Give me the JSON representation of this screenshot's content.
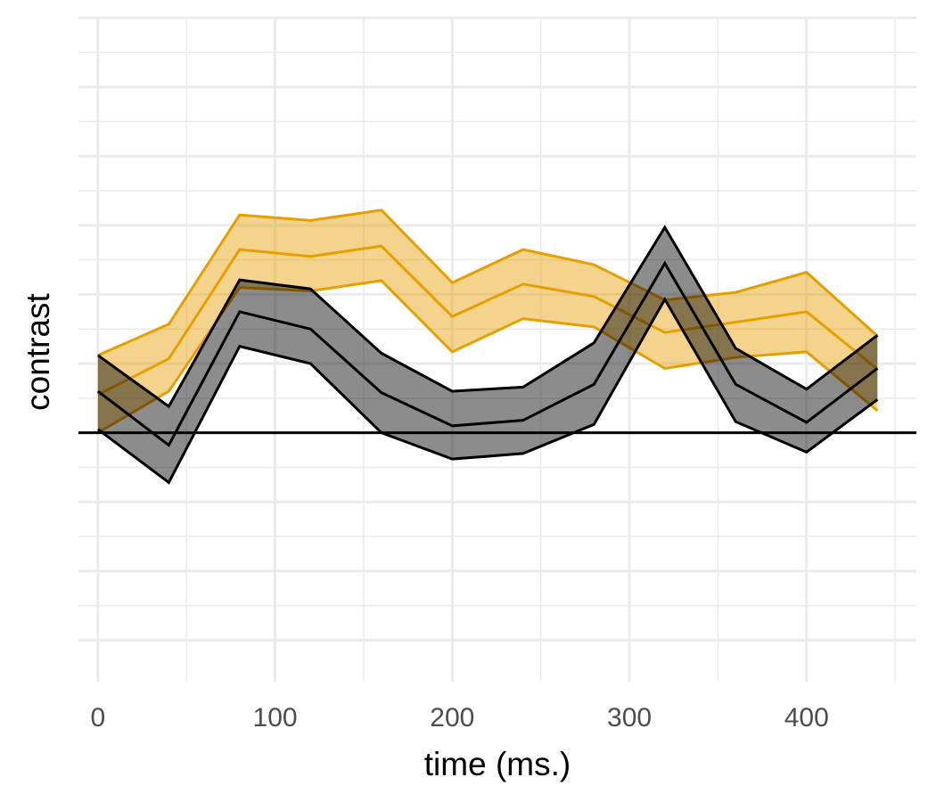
{
  "chart_data": {
    "type": "line",
    "title": "",
    "xlabel": "time (ms.)",
    "ylabel": "contrast",
    "xlim": [
      -11,
      462
    ],
    "ylim": [
      -3.6,
      6.0
    ],
    "x_ticks": [
      0,
      100,
      200,
      300,
      400
    ],
    "y_ticks": [],
    "grid": true,
    "reference_line": {
      "y": 0
    },
    "x": [
      0,
      40,
      80,
      120,
      160,
      200,
      240,
      280,
      320,
      360,
      400,
      440
    ],
    "series": [
      {
        "color": "#E69F00",
        "values": [
          0.55,
          1.07,
          2.65,
          2.55,
          2.7,
          1.68,
          2.15,
          1.97,
          1.45,
          1.6,
          1.75,
          0.92
        ],
        "lower": [
          0.0,
          0.6,
          2.1,
          2.05,
          2.2,
          1.17,
          1.65,
          1.53,
          0.93,
          1.09,
          1.17,
          0.32
        ],
        "upper": [
          1.12,
          1.57,
          3.15,
          3.07,
          3.22,
          2.17,
          2.65,
          2.43,
          1.92,
          2.03,
          2.32,
          1.4
        ]
      },
      {
        "color": "#000000",
        "values": [
          0.6,
          -0.18,
          1.75,
          1.5,
          0.58,
          0.1,
          0.18,
          0.7,
          2.45,
          0.7,
          0.15,
          0.93
        ],
        "lower": [
          0.05,
          -0.72,
          1.25,
          1.0,
          0.0,
          -0.38,
          -0.3,
          0.12,
          1.93,
          0.16,
          -0.28,
          0.48
        ],
        "upper": [
          1.12,
          0.38,
          2.21,
          2.08,
          1.15,
          0.6,
          0.66,
          1.3,
          2.97,
          1.22,
          0.63,
          1.41
        ]
      }
    ]
  }
}
